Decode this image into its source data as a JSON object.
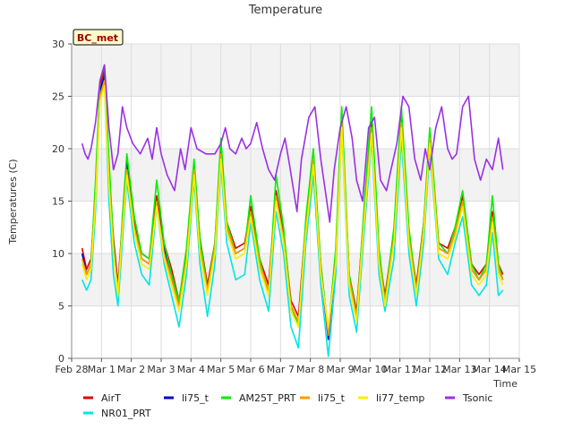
{
  "chart_data": {
    "type": "line",
    "title": "Temperature",
    "xlabel": "Time",
    "ylabel": "Temperatures (C)",
    "badge": "BC_met",
    "xlim": [
      0,
      15
    ],
    "ylim": [
      0,
      30
    ],
    "x_ticks": [
      0,
      1,
      2,
      3,
      4,
      5,
      6,
      7,
      8,
      9,
      10,
      11,
      12,
      13,
      14,
      15
    ],
    "x_tick_labels": [
      "Feb 28",
      "Mar 1",
      "Mar 2",
      "Mar 3",
      "Mar 4",
      "Mar 5",
      "Mar 6",
      "Mar 7",
      "Mar 8",
      "Mar 9",
      "Mar 10",
      "Mar 11",
      "Mar 12",
      "Mar 13",
      "Mar 14",
      "Mar 15"
    ],
    "y_ticks": [
      0,
      5,
      10,
      15,
      20,
      25,
      30
    ],
    "grid": true,
    "banded_background": true,
    "legend_position": "bottom",
    "series": [
      {
        "name": "AirT",
        "color": "#dd0000",
        "x": [
          0.35,
          0.5,
          0.65,
          0.8,
          0.95,
          1.1,
          1.25,
          1.4,
          1.55,
          1.7,
          1.85,
          2.1,
          2.35,
          2.6,
          2.85,
          3.1,
          3.35,
          3.6,
          3.85,
          4.1,
          4.3,
          4.55,
          4.8,
          5.0,
          5.2,
          5.5,
          5.8,
          6.0,
          6.3,
          6.6,
          6.85,
          7.1,
          7.35,
          7.6,
          7.85,
          8.1,
          8.35,
          8.6,
          8.85,
          9.05,
          9.3,
          9.55,
          9.8,
          10.05,
          10.3,
          10.5,
          10.8,
          11.05,
          11.3,
          11.55,
          11.8,
          12.0,
          12.3,
          12.6,
          12.85,
          13.1,
          13.4,
          13.65,
          13.9,
          14.1,
          14.3,
          14.45
        ],
        "y": [
          10.5,
          8.5,
          9.5,
          16,
          26,
          27.5,
          18,
          11.5,
          7,
          13,
          19,
          13,
          10,
          9.5,
          15.5,
          11,
          8.5,
          5.5,
          10,
          18.5,
          11.5,
          7,
          11,
          20,
          13,
          10.5,
          11,
          14.5,
          9.5,
          7,
          16,
          12,
          5.5,
          4,
          13,
          19,
          9,
          2,
          10,
          23,
          8,
          4.5,
          14,
          22.5,
          10,
          6,
          12,
          23,
          12,
          7,
          13,
          21,
          11,
          10.5,
          12.5,
          15.5,
          9,
          8,
          9,
          14,
          9,
          8
        ]
      },
      {
        "name": "NR01_PRT",
        "color": "#00e5e5",
        "x": [
          0.35,
          0.5,
          0.65,
          0.8,
          0.95,
          1.1,
          1.25,
          1.4,
          1.55,
          1.7,
          1.85,
          2.1,
          2.35,
          2.6,
          2.85,
          3.1,
          3.35,
          3.6,
          3.85,
          4.1,
          4.3,
          4.55,
          4.8,
          5.0,
          5.2,
          5.5,
          5.8,
          6.0,
          6.3,
          6.6,
          6.85,
          7.1,
          7.35,
          7.6,
          7.85,
          8.1,
          8.35,
          8.6,
          8.85,
          9.05,
          9.3,
          9.55,
          9.8,
          10.05,
          10.3,
          10.5,
          10.8,
          11.05,
          11.3,
          11.55,
          11.8,
          12.0,
          12.3,
          12.6,
          12.85,
          13.1,
          13.4,
          13.65,
          13.9,
          14.1,
          14.3,
          14.45
        ],
        "y": [
          7.5,
          6.5,
          7.5,
          14,
          25,
          26,
          15,
          8,
          5,
          11,
          17,
          11,
          8,
          7,
          14.5,
          9,
          6,
          3,
          8,
          17,
          9,
          4,
          9,
          18.5,
          11,
          7.5,
          8,
          13,
          7.5,
          4.5,
          14,
          10,
          3,
          1,
          11,
          17.5,
          7,
          0.2,
          8,
          22,
          6,
          2.5,
          12,
          21,
          8,
          4.5,
          9.5,
          21,
          10,
          5,
          11,
          20,
          9.5,
          8,
          11,
          13.5,
          7,
          6,
          7,
          12,
          6,
          6.5
        ]
      },
      {
        "name": "li75_t",
        "color": "#0000cc",
        "x": [
          0.35,
          0.5,
          0.65,
          0.8,
          0.95,
          1.1,
          1.25,
          1.4,
          1.55,
          1.7,
          1.85,
          2.1,
          2.35,
          2.6,
          2.85,
          3.1,
          3.35,
          3.6,
          3.85,
          4.1,
          4.3,
          4.55,
          4.8,
          5.0,
          5.2,
          5.5,
          5.8,
          6.0,
          6.3,
          6.6,
          6.85,
          7.1,
          7.35,
          7.6,
          7.85,
          8.1,
          8.35,
          8.6,
          8.85,
          9.05,
          9.3,
          9.55,
          9.8,
          10.05,
          10.3,
          10.5,
          10.8,
          11.05,
          11.3,
          11.55,
          11.8,
          12.0,
          12.3,
          12.6,
          12.85,
          13.1,
          13.4,
          13.65,
          13.9,
          14.1,
          14.3,
          14.45
        ],
        "y": [
          10,
          8,
          9,
          15.5,
          25.5,
          27,
          17,
          11,
          6.5,
          12.5,
          18.5,
          12.5,
          9.5,
          9,
          15,
          10.5,
          8,
          5,
          9.5,
          18,
          11,
          6.5,
          10.5,
          19.5,
          12.5,
          10,
          10.5,
          14,
          9,
          6.5,
          15.5,
          11.5,
          5,
          3.5,
          12.5,
          18.5,
          8.5,
          1.8,
          9.5,
          22.5,
          7.5,
          4,
          13.5,
          22,
          9.5,
          5.5,
          11.5,
          22.5,
          11.5,
          6.5,
          12.5,
          20.5,
          10.5,
          10,
          12,
          15,
          8.5,
          7.5,
          8.5,
          13.5,
          8.5,
          7.5
        ]
      },
      {
        "name": "AM25T_PRT",
        "color": "#00ee00",
        "x": [
          0.35,
          0.5,
          0.65,
          0.8,
          0.95,
          1.1,
          1.25,
          1.4,
          1.55,
          1.7,
          1.85,
          2.1,
          2.35,
          2.6,
          2.85,
          3.1,
          3.35,
          3.6,
          3.85,
          4.1,
          4.3,
          4.55,
          4.8,
          5.0,
          5.2,
          5.5,
          5.8,
          6.0,
          6.3,
          6.6,
          6.85,
          7.1,
          7.35,
          7.6,
          7.85,
          8.1,
          8.35,
          8.6,
          8.85,
          9.05,
          9.3,
          9.55,
          9.8,
          10.05,
          10.3,
          10.5,
          10.8,
          11.05,
          11.3,
          11.55,
          11.8,
          12.0,
          12.3,
          12.6,
          12.85,
          13.1,
          13.4,
          13.65,
          13.9,
          14.1,
          14.3,
          14.45
        ],
        "y": [
          9,
          8,
          9,
          17,
          26.5,
          28,
          19,
          11,
          6,
          13.5,
          19.5,
          13.5,
          10,
          9.5,
          17,
          11,
          8,
          5.5,
          10.5,
          19,
          11.5,
          6.5,
          11,
          21,
          13,
          10,
          10.5,
          15.5,
          9.5,
          6,
          17.5,
          12.5,
          5,
          3,
          13.5,
          20,
          9,
          2.5,
          10.5,
          24,
          8,
          4,
          14.5,
          24,
          10.5,
          5.5,
          12.5,
          24,
          12.5,
          6.5,
          13,
          22,
          11,
          10,
          12.5,
          16,
          9,
          7.5,
          9,
          15.5,
          9,
          7.5
        ]
      },
      {
        "name": "li75_t",
        "color": "#ff9900",
        "x": [
          0.35,
          0.5,
          0.65,
          0.8,
          0.95,
          1.1,
          1.25,
          1.4,
          1.55,
          1.7,
          1.85,
          2.1,
          2.35,
          2.6,
          2.85,
          3.1,
          3.35,
          3.6,
          3.85,
          4.1,
          4.3,
          4.55,
          4.8,
          5.0,
          5.2,
          5.5,
          5.8,
          6.0,
          6.3,
          6.6,
          6.85,
          7.1,
          7.35,
          7.6,
          7.85,
          8.1,
          8.35,
          8.6,
          8.85,
          9.05,
          9.3,
          9.55,
          9.8,
          10.05,
          10.3,
          10.5,
          10.8,
          11.05,
          11.3,
          11.55,
          11.8,
          12.0,
          12.3,
          12.6,
          12.85,
          13.1,
          13.4,
          13.65,
          13.9,
          14.1,
          14.3,
          14.45
        ],
        "y": [
          9.5,
          8,
          9,
          15.5,
          25,
          26.5,
          17,
          10.5,
          6.5,
          12.5,
          18,
          12.5,
          9.5,
          9,
          15,
          10,
          7.5,
          5,
          9.5,
          18,
          10.5,
          6.5,
          10.5,
          19.5,
          12.5,
          10,
          10.5,
          14,
          9,
          6.5,
          15.5,
          11.5,
          5,
          3.5,
          12.5,
          19,
          8.5,
          2.2,
          9.5,
          22.5,
          7.5,
          4,
          13.5,
          22,
          9.5,
          5.5,
          11.5,
          22.5,
          11.5,
          6.5,
          12.5,
          21,
          10.5,
          10,
          12,
          15,
          8.5,
          7.5,
          8.5,
          13.5,
          8.5,
          7.5
        ]
      },
      {
        "name": "li77_temp",
        "color": "#ffee00",
        "x": [
          0.35,
          0.5,
          0.65,
          0.8,
          0.95,
          1.1,
          1.25,
          1.4,
          1.55,
          1.7,
          1.85,
          2.1,
          2.35,
          2.6,
          2.85,
          3.1,
          3.35,
          3.6,
          3.85,
          4.1,
          4.3,
          4.55,
          4.8,
          5.0,
          5.2,
          5.5,
          5.8,
          6.0,
          6.3,
          6.6,
          6.85,
          7.1,
          7.35,
          7.6,
          7.85,
          8.1,
          8.35,
          8.6,
          8.85,
          9.05,
          9.3,
          9.55,
          9.8,
          10.05,
          10.3,
          10.5,
          10.8,
          11.05,
          11.3,
          11.55,
          11.8,
          12.0,
          12.3,
          12.6,
          12.85,
          13.1,
          13.4,
          13.65,
          13.9,
          14.1,
          14.3,
          14.45
        ],
        "y": [
          9,
          7.5,
          8.5,
          15,
          24.5,
          26,
          16.5,
          10,
          6,
          12,
          17.5,
          12,
          9,
          8.5,
          14.5,
          9.5,
          7,
          4.5,
          9,
          17.5,
          10,
          6,
          10,
          19,
          12,
          9.5,
          10,
          13.5,
          8.5,
          6,
          15,
          11,
          4.5,
          3,
          12,
          18.5,
          8,
          3,
          9,
          22,
          7,
          3.5,
          13,
          21.5,
          9,
          5,
          11,
          22,
          11,
          6,
          12,
          20.5,
          10,
          9.5,
          11.5,
          14.5,
          8,
          7,
          8,
          13,
          8,
          7
        ]
      },
      {
        "name": "Tsonic",
        "color": "#9b30e5",
        "x": [
          0.35,
          0.45,
          0.55,
          0.65,
          0.8,
          0.95,
          1.1,
          1.25,
          1.4,
          1.55,
          1.7,
          1.85,
          2.05,
          2.3,
          2.55,
          2.7,
          2.85,
          3.0,
          3.2,
          3.45,
          3.65,
          3.8,
          4.0,
          4.2,
          4.5,
          4.8,
          5.0,
          5.15,
          5.3,
          5.5,
          5.7,
          5.85,
          6.0,
          6.2,
          6.4,
          6.6,
          6.8,
          7.0,
          7.15,
          7.3,
          7.55,
          7.7,
          7.95,
          8.15,
          8.35,
          8.5,
          8.65,
          8.8,
          9.0,
          9.2,
          9.4,
          9.55,
          9.75,
          9.95,
          10.15,
          10.35,
          10.55,
          10.7,
          10.9,
          11.1,
          11.3,
          11.5,
          11.7,
          11.85,
          12.0,
          12.2,
          12.4,
          12.6,
          12.75,
          12.9,
          13.1,
          13.3,
          13.5,
          13.7,
          13.9,
          14.1,
          14.3,
          14.45
        ],
        "y": [
          20.5,
          19.5,
          19,
          20,
          22.5,
          26.5,
          28,
          22,
          18,
          19.5,
          24,
          22,
          20.5,
          19.5,
          21,
          19,
          22,
          19.5,
          17.5,
          16,
          20,
          18,
          22,
          20,
          19.5,
          19.5,
          20.5,
          22,
          20,
          19.5,
          21,
          20,
          20.5,
          22.5,
          20,
          18,
          17,
          19.5,
          21,
          18.5,
          14,
          19,
          23,
          24,
          19,
          16,
          13,
          18,
          22,
          24,
          21,
          17,
          15,
          22,
          23,
          17,
          16,
          18,
          20.5,
          25,
          24,
          19,
          17,
          20,
          18,
          22,
          24,
          20,
          19,
          19.5,
          24,
          25,
          19,
          17,
          19,
          18,
          21,
          18
        ]
      }
    ]
  },
  "legend": {
    "items": [
      {
        "label": "AirT",
        "color": "#dd0000"
      },
      {
        "label": "li75_t",
        "color": "#0000cc"
      },
      {
        "label": "AM25T_PRT",
        "color": "#00ee00"
      },
      {
        "label": "li75_t",
        "color": "#ff9900"
      },
      {
        "label": "li77_temp",
        "color": "#ffee00"
      },
      {
        "label": "Tsonic",
        "color": "#9b30e5"
      },
      {
        "label": "NR01_PRT",
        "color": "#00e5e5"
      }
    ]
  },
  "colors": {
    "plot_bg": "#ffffff",
    "band_bg": "#f2f2f2",
    "grid": "#dddddd",
    "badge_fill": "#ffffcc",
    "badge_text": "#a00000"
  }
}
